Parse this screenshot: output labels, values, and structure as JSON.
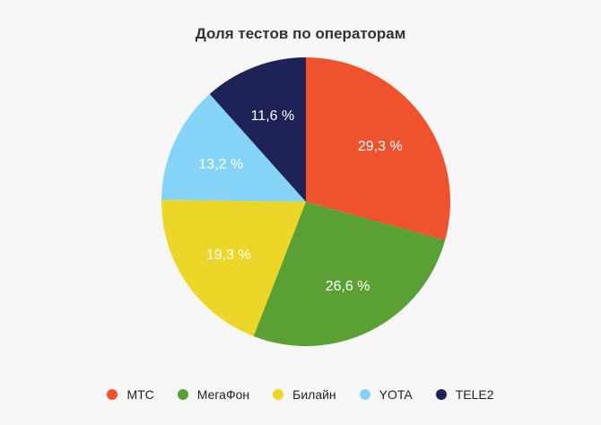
{
  "chart_data": {
    "type": "pie",
    "title": "Доля тестов по операторам",
    "categories": [
      "МТС",
      "МегаФон",
      "Билайн",
      "YOTA",
      "TELE2"
    ],
    "values": [
      29.3,
      26.6,
      19.3,
      13.2,
      11.6
    ],
    "value_labels": [
      "29,3 %",
      "26,6 %",
      "19,3 %",
      "13,2 %",
      "11,6 %"
    ],
    "colors": [
      "#ef532e",
      "#5aa035",
      "#ecd628",
      "#85d3f7",
      "#1e2257"
    ],
    "start_angle_deg": 0,
    "direction": "clockwise",
    "legend": {
      "position": "bottom",
      "items": [
        {
          "label": "МТС",
          "color": "#ef532e"
        },
        {
          "label": "МегаФон",
          "color": "#5aa035"
        },
        {
          "label": "Билайн",
          "color": "#ecd628"
        },
        {
          "label": "YOTA",
          "color": "#85d3f7"
        },
        {
          "label": "TELE2",
          "color": "#1e2257"
        }
      ]
    }
  }
}
